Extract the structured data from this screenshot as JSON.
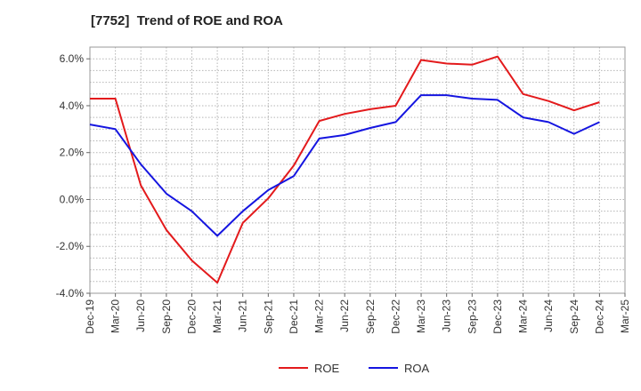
{
  "chart_data": {
    "type": "line",
    "title": "[7752]  Trend of ROE and ROA",
    "categories": [
      "Dec-19",
      "Mar-20",
      "Jun-20",
      "Sep-20",
      "Dec-20",
      "Mar-21",
      "Jun-21",
      "Sep-21",
      "Dec-21",
      "Mar-22",
      "Jun-22",
      "Sep-22",
      "Dec-22",
      "Mar-23",
      "Jun-23",
      "Sep-23",
      "Dec-23",
      "Mar-24",
      "Jun-24",
      "Sep-24",
      "Dec-24",
      "Mar-25"
    ],
    "y_ticks": [
      -4.0,
      -2.0,
      0.0,
      2.0,
      4.0,
      6.0
    ],
    "y_tick_labels": [
      "-4.0%",
      "-2.0%",
      "0.0%",
      "2.0%",
      "4.0%",
      "6.0%"
    ],
    "ylim": [
      -4.0,
      6.5
    ],
    "grid": true,
    "legend_position": "bottom-center",
    "series": [
      {
        "name": "ROE",
        "color": "#e31a1c",
        "values": [
          4.3,
          4.3,
          0.6,
          -1.3,
          -2.6,
          -3.55,
          -1.0,
          0.05,
          1.45,
          3.35,
          3.65,
          3.85,
          4.0,
          5.95,
          5.8,
          5.75,
          6.1,
          4.5,
          4.2,
          3.8,
          4.15,
          null
        ]
      },
      {
        "name": "ROA",
        "color": "#1515e0",
        "values": [
          3.2,
          3.0,
          1.5,
          0.25,
          -0.5,
          -1.55,
          -0.5,
          0.4,
          1.0,
          2.6,
          2.75,
          3.05,
          3.3,
          4.45,
          4.45,
          4.3,
          4.25,
          3.5,
          3.3,
          2.8,
          3.3,
          null
        ]
      }
    ]
  }
}
